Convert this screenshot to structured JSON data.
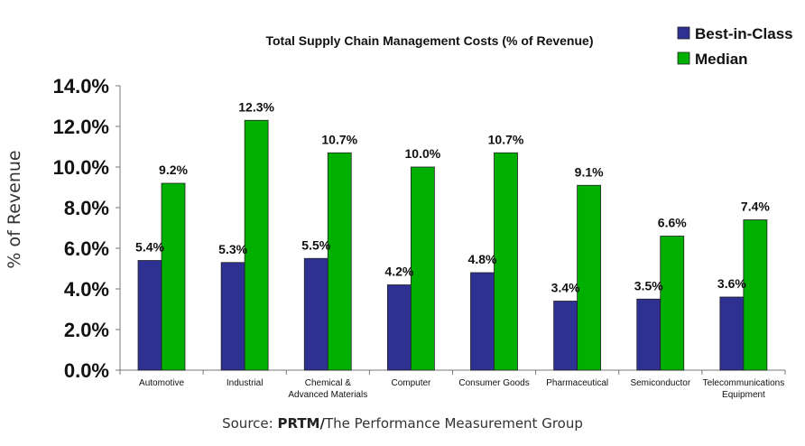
{
  "chart_data": {
    "type": "bar",
    "title": "Total Supply Chain Management Costs (% of Revenue)",
    "ylabel": "% of Revenue",
    "xlabel": "",
    "categories": [
      [
        "Automotive"
      ],
      [
        "Industrial"
      ],
      [
        "Chemical &",
        "Advanced Materials"
      ],
      [
        "Computer"
      ],
      [
        "Consumer Goods"
      ],
      [
        "Pharmaceutical"
      ],
      [
        "Semiconductor"
      ],
      [
        "Telecommunications",
        "Equipment"
      ]
    ],
    "series": [
      {
        "name": "Best-in-Class",
        "color": "#2e3192",
        "values": [
          5.4,
          5.3,
          5.5,
          4.2,
          4.8,
          3.4,
          3.5,
          3.6
        ],
        "labels": [
          "5.4%",
          "5.3%",
          "5.5%",
          "4.2%",
          "4.8%",
          "3.4%",
          "3.5%",
          "3.6%"
        ]
      },
      {
        "name": "Median",
        "color": "#00b000",
        "values": [
          9.2,
          12.3,
          10.7,
          10.0,
          10.7,
          9.1,
          6.6,
          7.4
        ],
        "labels": [
          "9.2%",
          "12.3%",
          "10.7%",
          "10.0%",
          "10.7%",
          "9.1%",
          "6.6%",
          "7.4%"
        ]
      }
    ],
    "ylim": [
      0,
      14
    ],
    "yticks": [
      "0.0%",
      "2.0%",
      "4.0%",
      "6.0%",
      "8.0%",
      "10.0%",
      "12.0%",
      "14.0%"
    ],
    "grid": false,
    "legend_position": "top-right"
  },
  "source": {
    "prefix": "Source: ",
    "org": "PRTM/",
    "rest": "The Performance Measurement Group"
  }
}
